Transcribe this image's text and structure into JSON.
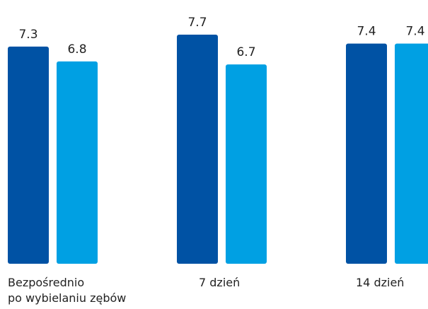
{
  "chart_data": {
    "type": "bar",
    "categories": [
      [
        "Bezpośrednio",
        "po wybielaniu zębów"
      ],
      [
        "7 dzień"
      ],
      [
        "14 dzień"
      ]
    ],
    "series": [
      {
        "values": [
          7.3,
          7.7,
          7.4
        ],
        "color": "#0052a4"
      },
      {
        "values": [
          6.8,
          6.7,
          7.4
        ],
        "color": "#00a0e3"
      }
    ],
    "value_labels": [
      [
        "7.3",
        "7.7",
        "7.4"
      ],
      [
        "6.8",
        "6.7",
        "7.4"
      ]
    ],
    "ylim": [
      0,
      7.7
    ],
    "grid": false,
    "legend": "none",
    "label_color": "#222222"
  }
}
